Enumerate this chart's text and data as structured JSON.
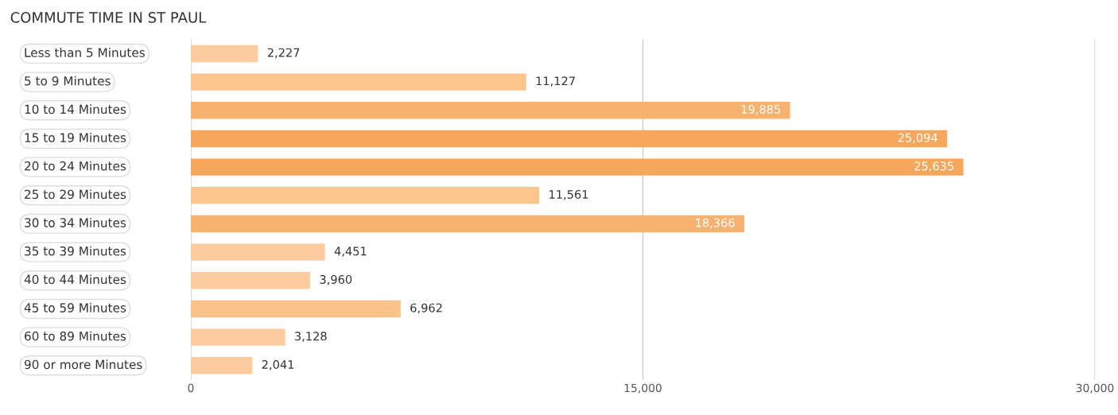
{
  "chart_data": {
    "type": "bar",
    "orientation": "horizontal",
    "title": "COMMUTE TIME IN ST PAUL",
    "categories": [
      "Less than 5 Minutes",
      "5 to 9 Minutes",
      "10 to 14 Minutes",
      "15 to 19 Minutes",
      "20 to 24 Minutes",
      "25 to 29 Minutes",
      "30 to 34 Minutes",
      "35 to 39 Minutes",
      "40 to 44 Minutes",
      "45 to 59 Minutes",
      "60 to 89 Minutes",
      "90 or more Minutes"
    ],
    "values": [
      2227,
      11127,
      19885,
      25094,
      25635,
      11561,
      18366,
      4451,
      3960,
      6962,
      3128,
      2041
    ],
    "colors": [
      "#fccca0",
      "#fbc590",
      "#f8b270",
      "#f6a75b",
      "#f6a75b",
      "#fbc590",
      "#f8b270",
      "#fccca0",
      "#fccca0",
      "#fbc28a",
      "#fccca0",
      "#fccca0"
    ],
    "value_labels": [
      "2,227",
      "11,127",
      "19,885",
      "25,094",
      "25,635",
      "11,561",
      "18,366",
      "4,451",
      "3,960",
      "6,962",
      "3,128",
      "2,041"
    ],
    "xlim": [
      0,
      30000
    ],
    "xticks": [
      0,
      {
        "value": 15000,
        "label": "15,000"
      },
      {
        "value": 30000,
        "label": "30,000"
      }
    ],
    "grid": "x"
  }
}
